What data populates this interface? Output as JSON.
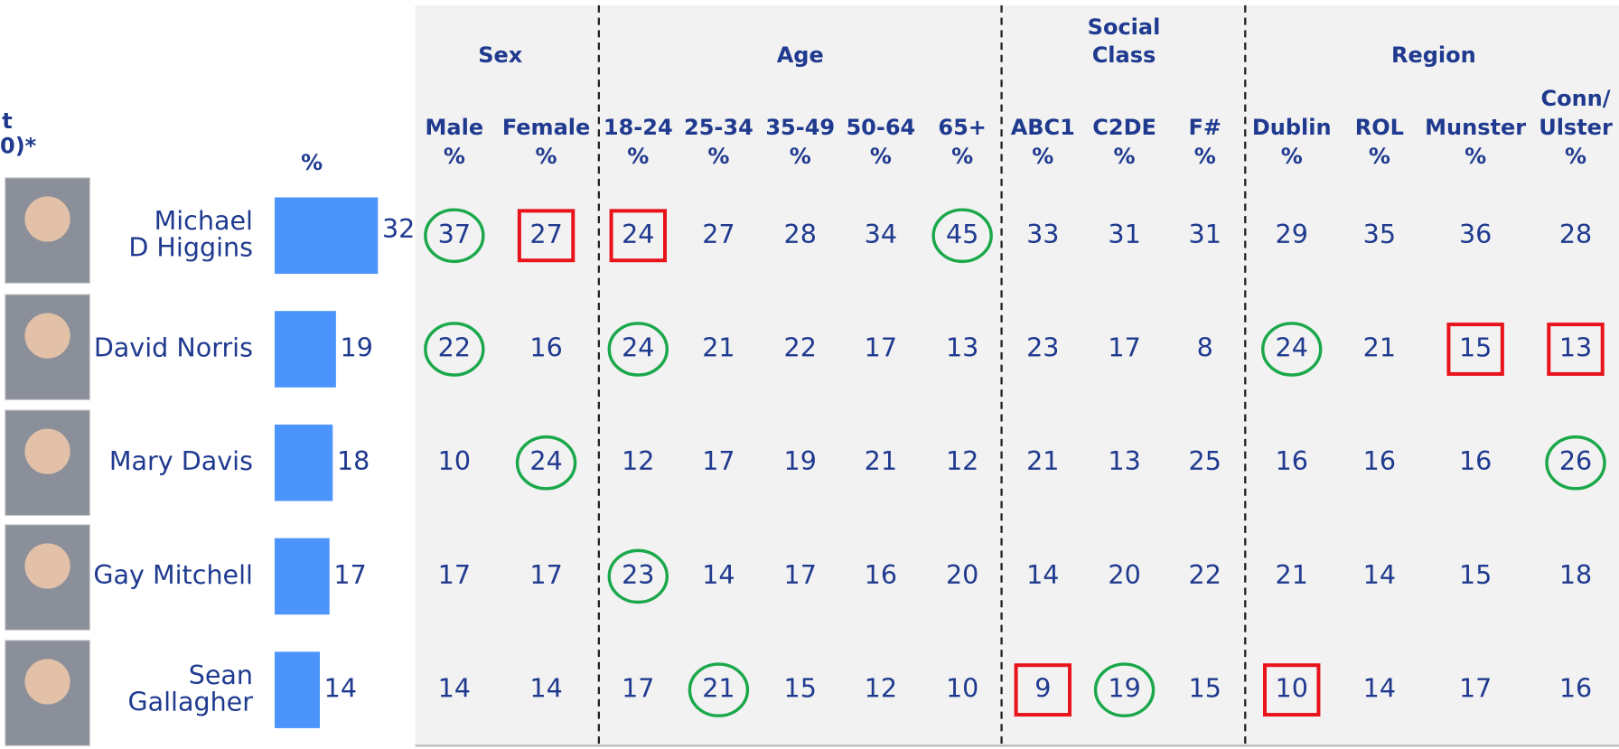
{
  "header_fragment": [
    "t",
    "0)*"
  ],
  "total_header": "%",
  "unit": "%",
  "candidates": [
    {
      "name": [
        "Michael",
        "D Higgins"
      ],
      "total": 32
    },
    {
      "name": [
        "David Norris"
      ],
      "total": 19
    },
    {
      "name": [
        "Mary Davis"
      ],
      "total": 18
    },
    {
      "name": [
        "Gay Mitchell"
      ],
      "total": 17
    },
    {
      "name": [
        "Sean",
        "Gallagher"
      ],
      "total": 14
    }
  ],
  "bar_color": "#4a94fb",
  "groups": [
    {
      "label": [
        "Sex"
      ],
      "columns": [
        {
          "label": [
            "Male"
          ]
        },
        {
          "label": [
            "Female"
          ]
        }
      ]
    },
    {
      "label": [
        "Age"
      ],
      "columns": [
        {
          "label": [
            "18-24"
          ]
        },
        {
          "label": [
            "25-34"
          ]
        },
        {
          "label": [
            "35-49"
          ]
        },
        {
          "label": [
            "50-64"
          ]
        },
        {
          "label": [
            "65+"
          ]
        }
      ]
    },
    {
      "label": [
        "Social",
        "Class"
      ],
      "columns": [
        {
          "label": [
            "ABC1"
          ]
        },
        {
          "label": [
            "C2DE"
          ]
        },
        {
          "label": [
            "F#"
          ]
        }
      ]
    },
    {
      "label": [
        "Region"
      ],
      "columns": [
        {
          "label": [
            "Dublin"
          ]
        },
        {
          "label": [
            "ROL"
          ]
        },
        {
          "label": [
            "Munster"
          ]
        },
        {
          "label": [
            "Conn/",
            "Ulster"
          ]
        }
      ]
    }
  ],
  "rows": [
    [
      37,
      27,
      24,
      27,
      28,
      34,
      45,
      33,
      31,
      31,
      29,
      35,
      36,
      28
    ],
    [
      22,
      16,
      24,
      21,
      22,
      17,
      13,
      23,
      17,
      8,
      24,
      21,
      15,
      13
    ],
    [
      10,
      24,
      12,
      17,
      19,
      21,
      12,
      21,
      13,
      25,
      16,
      16,
      16,
      26
    ],
    [
      17,
      17,
      23,
      14,
      17,
      16,
      20,
      14,
      20,
      22,
      21,
      14,
      15,
      18
    ],
    [
      14,
      14,
      17,
      21,
      15,
      12,
      10,
      9,
      19,
      15,
      10,
      14,
      17,
      16
    ]
  ],
  "highlights": [
    [
      "circle",
      "box",
      "box",
      null,
      null,
      null,
      "circle",
      null,
      null,
      null,
      null,
      null,
      null,
      null
    ],
    [
      "circle",
      null,
      "circle",
      null,
      null,
      null,
      null,
      null,
      null,
      null,
      "circle",
      null,
      "box",
      "box"
    ],
    [
      null,
      "circle",
      null,
      null,
      null,
      null,
      null,
      null,
      null,
      null,
      null,
      null,
      null,
      "circle"
    ],
    [
      null,
      null,
      "circle",
      null,
      null,
      null,
      null,
      null,
      null,
      null,
      null,
      null,
      null,
      null
    ],
    [
      null,
      null,
      null,
      "circle",
      null,
      null,
      null,
      "box",
      "circle",
      null,
      "box",
      null,
      null,
      null
    ]
  ],
  "circle_color": "#1aa84a",
  "box_color": "#e8131b"
}
